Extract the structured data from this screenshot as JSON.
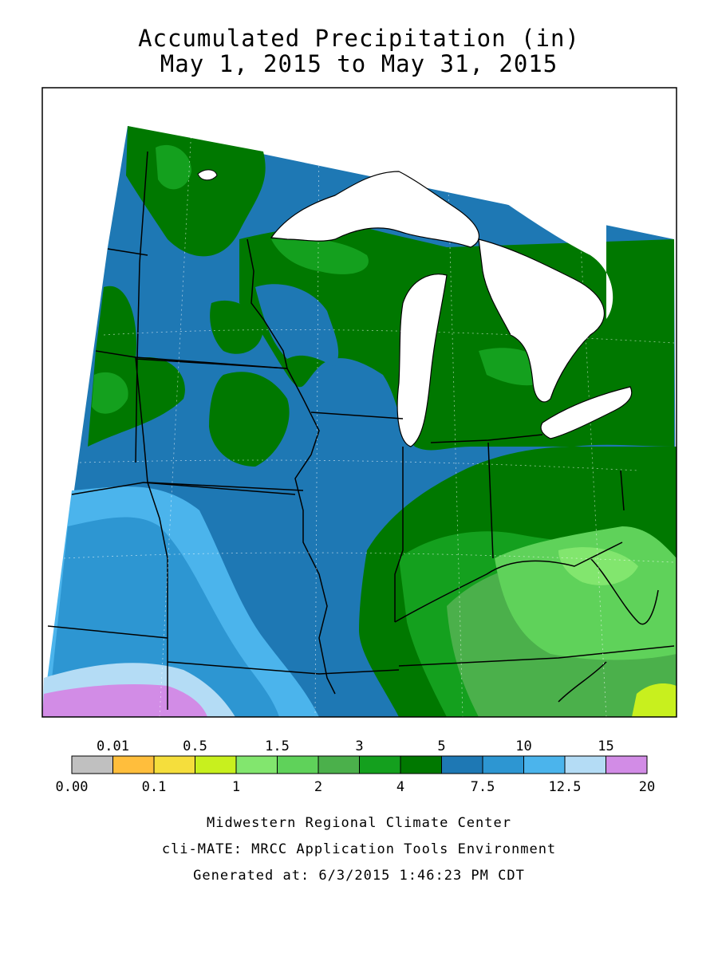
{
  "title": {
    "line1": "Accumulated Precipitation (in)",
    "line2": "May 1, 2015 to May 31, 2015"
  },
  "legend": {
    "top_labels": [
      "0.01",
      "0.5",
      "1.5",
      "3",
      "5",
      "10",
      "15"
    ],
    "bottom_labels": [
      "0.00",
      "0.1",
      "1",
      "2",
      "4",
      "7.5",
      "12.5",
      "20"
    ],
    "colors": [
      "#c0c0c0",
      "#ffbe3c",
      "#f5de3c",
      "#c8f01e",
      "#82e66e",
      "#5fd25a",
      "#4bb04b",
      "#14a01e",
      "#007800",
      "#1e78b4",
      "#2d96d2",
      "#4bb4ec",
      "#b4dcf5",
      "#d28ce6"
    ]
  },
  "credits": {
    "line1": "Midwestern Regional Climate Center",
    "line2": "cli-MATE: MRCC Application Tools Environment",
    "line3": "Generated at: 6/3/2015 1:46:23 PM CDT"
  }
}
